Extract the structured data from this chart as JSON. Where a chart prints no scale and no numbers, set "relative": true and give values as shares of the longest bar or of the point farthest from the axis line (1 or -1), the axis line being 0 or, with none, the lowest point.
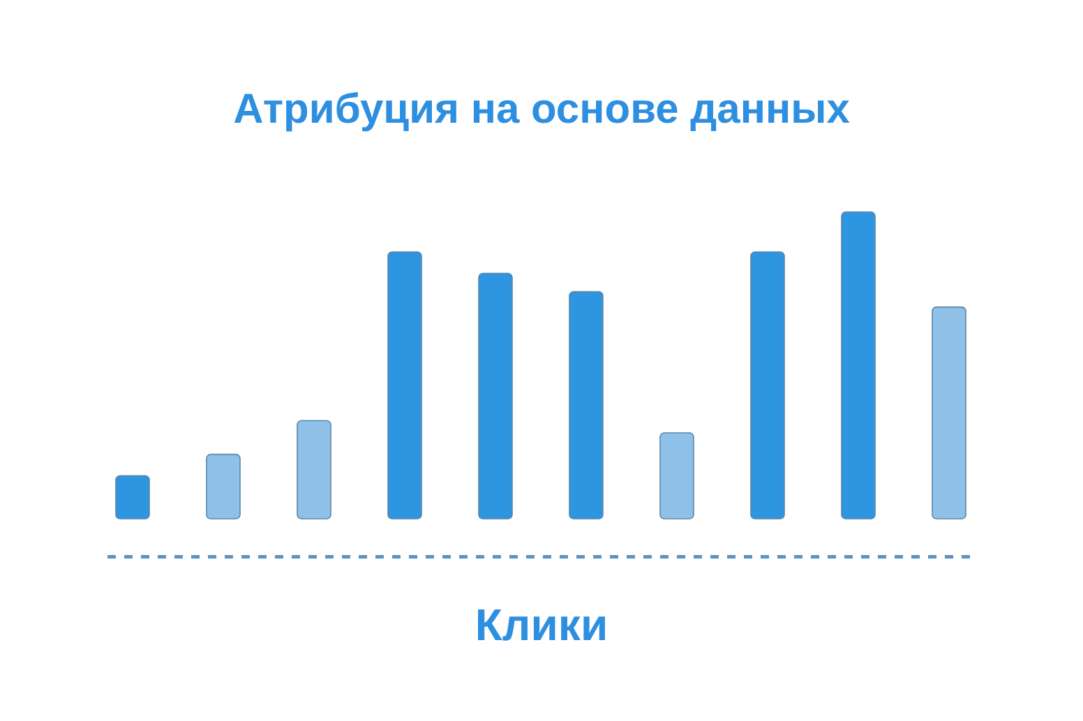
{
  "chart_data": {
    "type": "bar",
    "title": "Атрибуция на основе данных",
    "xlabel": "Клики",
    "relative": true,
    "categories": [
      null,
      null,
      null,
      null,
      null,
      null,
      null,
      null,
      null,
      null
    ],
    "values": [
      0.14,
      0.21,
      0.32,
      0.87,
      0.8,
      0.74,
      0.28,
      0.87,
      1,
      0.69
    ],
    "colors": [
      "#2e96e1",
      "#8ec0e8",
      "#8ec0e8",
      "#2e96e1",
      "#2e96e1",
      "#2e96e1",
      "#8ec0e8",
      "#2e96e1",
      "#2e96e1",
      "#8ec0e8"
    ],
    "data_labels": false
  }
}
